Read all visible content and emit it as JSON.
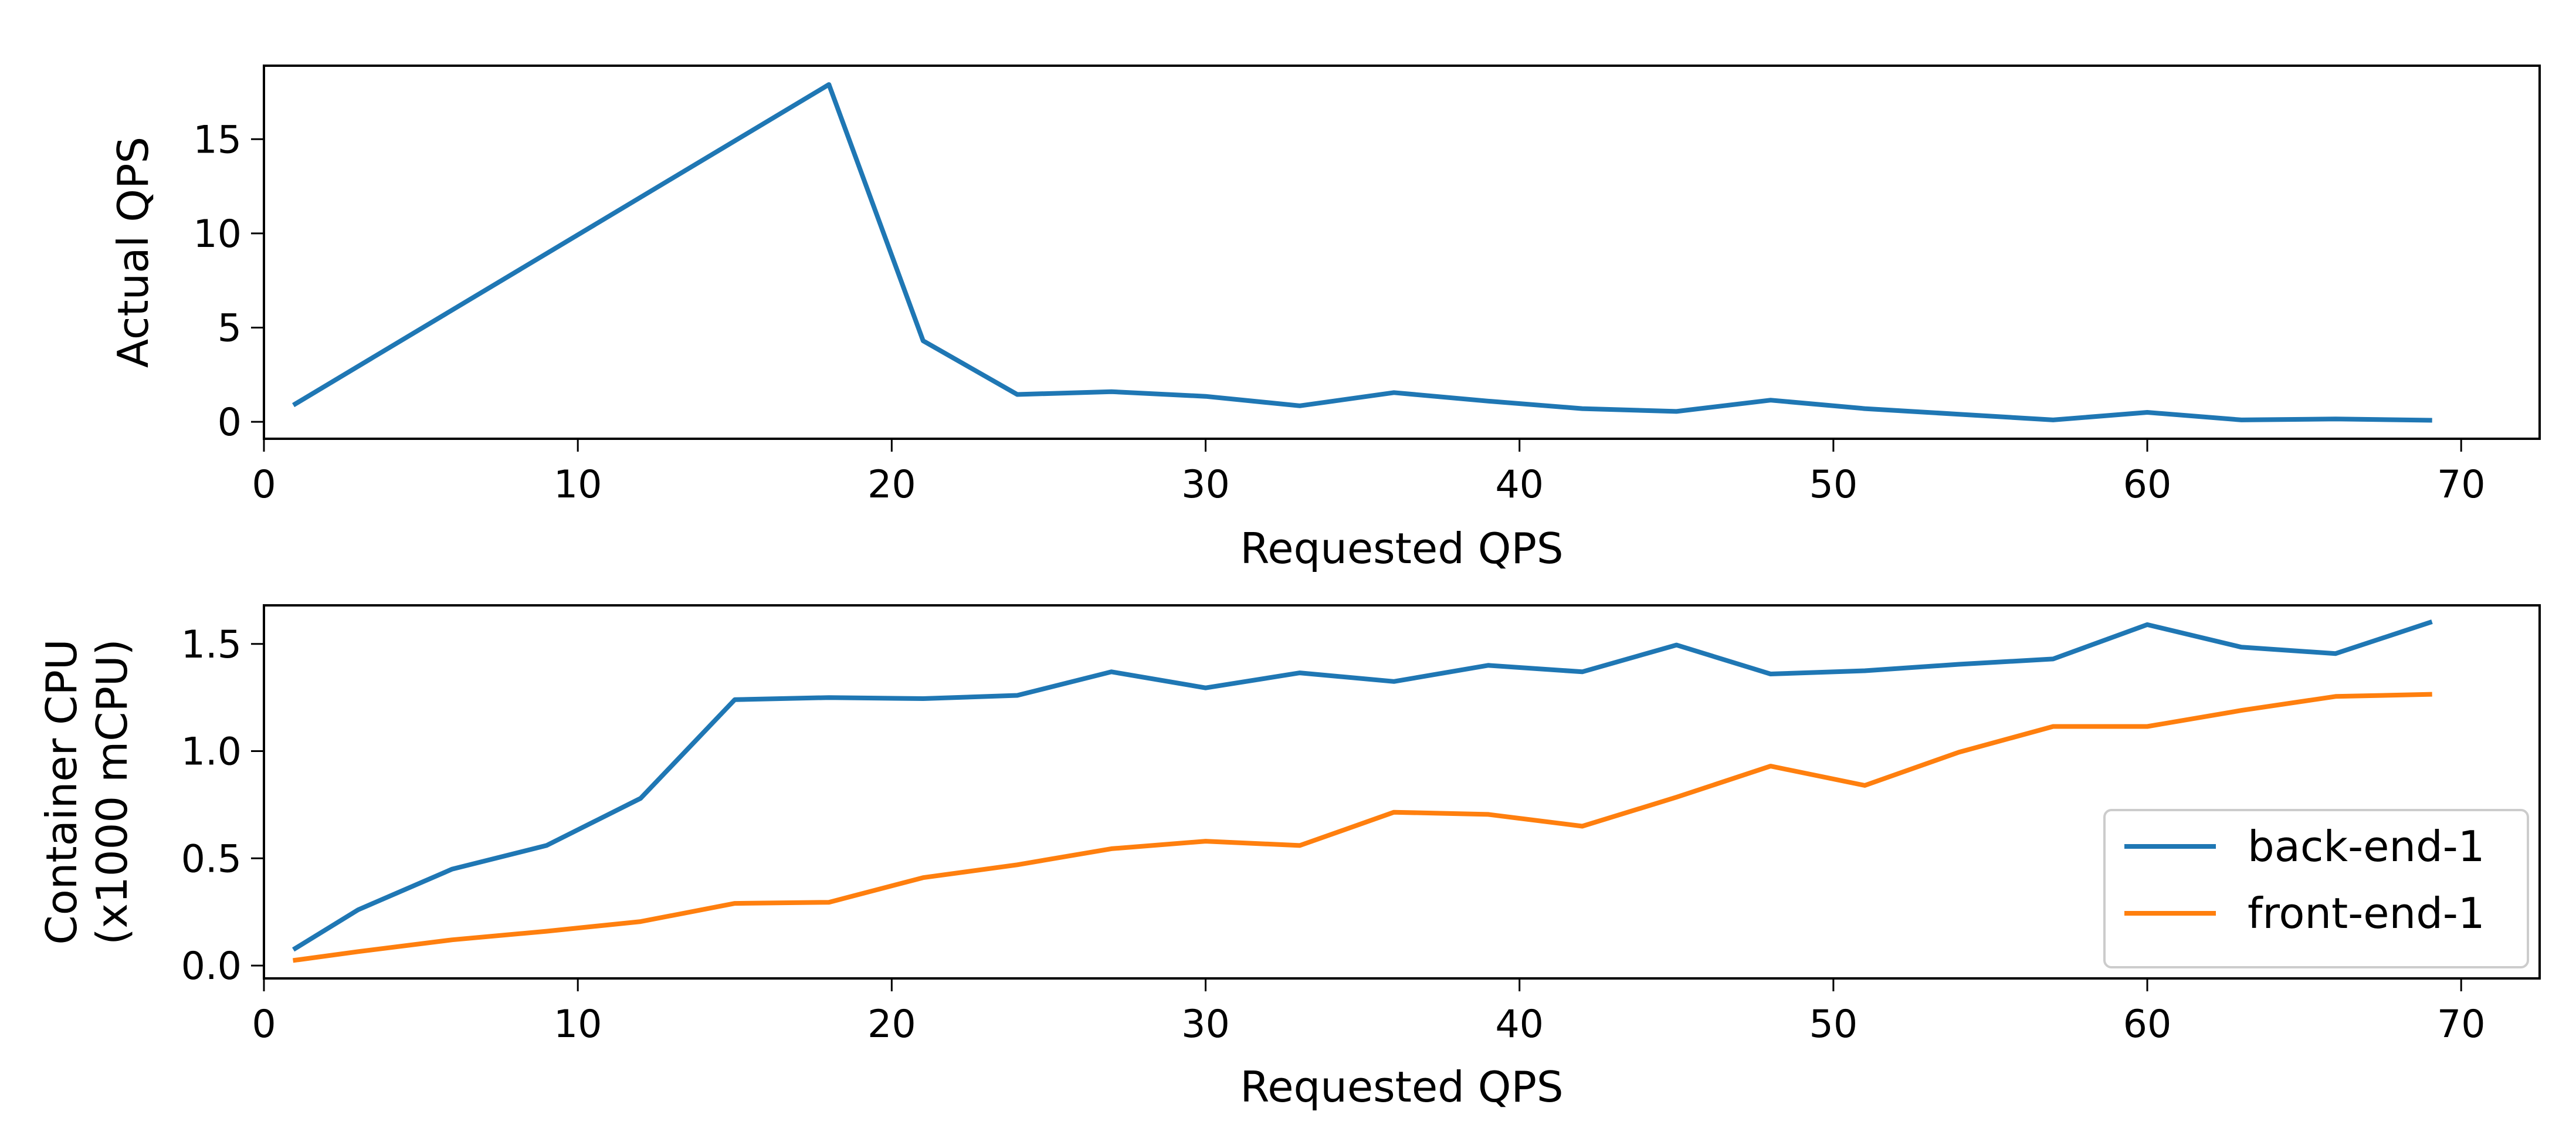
{
  "chart_data": [
    {
      "type": "line",
      "title": "",
      "xlabel": "Requested QPS",
      "ylabel": "Actual QPS",
      "xlim": [
        0,
        72.5
      ],
      "ylim": [
        -0.9,
        18.9
      ],
      "xticks": [
        0,
        10,
        20,
        30,
        40,
        50,
        60,
        70
      ],
      "yticks": [
        0,
        5,
        10,
        15
      ],
      "grid": false,
      "legend": null,
      "series": [
        {
          "name": "",
          "color": "#1f77b4",
          "x": [
            1,
            18,
            21,
            24,
            27,
            30,
            33,
            36,
            39,
            42,
            45,
            48,
            51,
            54,
            57,
            60,
            63,
            66,
            69
          ],
          "y": [
            0.95,
            17.9,
            4.3,
            1.45,
            1.6,
            1.35,
            0.85,
            1.55,
            1.1,
            0.7,
            0.55,
            1.15,
            0.7,
            0.4,
            0.1,
            0.5,
            0.1,
            0.15,
            0.08
          ]
        }
      ]
    },
    {
      "type": "line",
      "title": "",
      "xlabel": "Requested QPS",
      "ylabel": "Container CPU\n(x1000 mCPU)",
      "xlim": [
        0,
        72.5
      ],
      "ylim": [
        -0.06,
        1.68
      ],
      "xticks": [
        0,
        10,
        20,
        30,
        40,
        50,
        60,
        70
      ],
      "yticks": [
        "0.0",
        "0.5",
        "1.0",
        "1.5"
      ],
      "grid": false,
      "legend": "lower-right",
      "series": [
        {
          "name": "back-end-1",
          "color": "#1f77b4",
          "x": [
            1,
            3,
            6,
            9,
            12,
            15,
            18,
            21,
            24,
            27,
            30,
            33,
            36,
            39,
            42,
            45,
            48,
            51,
            54,
            57,
            60,
            63,
            66,
            69
          ],
          "y": [
            0.08,
            0.26,
            0.45,
            0.56,
            0.78,
            1.24,
            1.25,
            1.245,
            1.26,
            1.37,
            1.295,
            1.365,
            1.325,
            1.4,
            1.37,
            1.495,
            1.36,
            1.375,
            1.405,
            1.43,
            1.59,
            1.485,
            1.455,
            1.6
          ]
        },
        {
          "name": "front-end-1",
          "color": "#ff7f0e",
          "x": [
            1,
            3,
            6,
            9,
            12,
            15,
            18,
            21,
            24,
            27,
            30,
            33,
            36,
            39,
            42,
            45,
            48,
            51,
            54,
            57,
            60,
            63,
            66,
            69
          ],
          "y": [
            0.025,
            0.065,
            0.12,
            0.16,
            0.205,
            0.29,
            0.295,
            0.41,
            0.47,
            0.545,
            0.58,
            0.56,
            0.715,
            0.705,
            0.65,
            0.785,
            0.93,
            0.84,
            0.995,
            1.115,
            1.115,
            1.19,
            1.255,
            1.265
          ]
        }
      ]
    }
  ]
}
